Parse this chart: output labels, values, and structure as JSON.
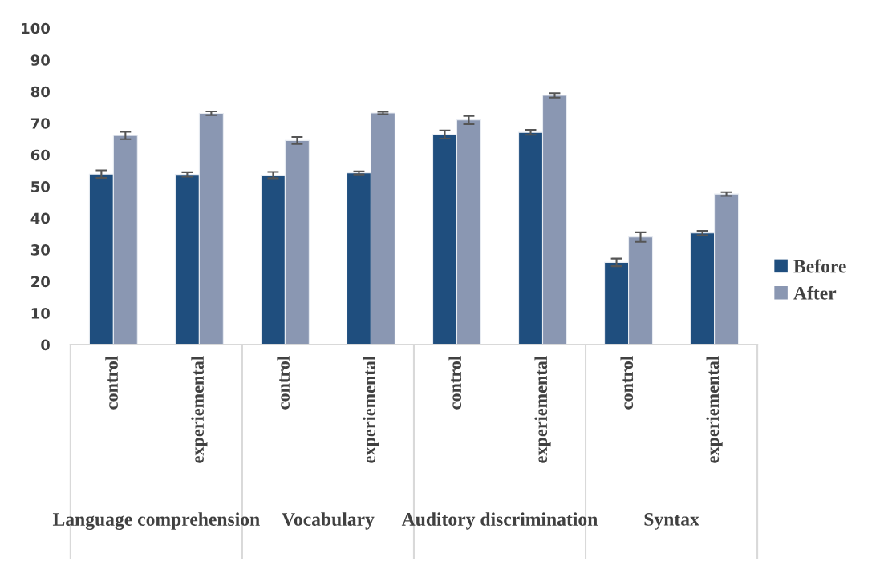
{
  "chart_data": {
    "type": "bar",
    "categories": [
      "control",
      "experiemental",
      "control",
      "experiemental",
      "control",
      "experiemental",
      "control",
      "experiemental"
    ],
    "series": [
      {
        "name": "Before",
        "color": "#1f4e7e",
        "values": [
          53.9,
          53.8,
          53.6,
          54.3,
          66.4,
          67.1,
          26.0,
          35.3
        ],
        "errors": [
          1.2,
          0.7,
          1.0,
          0.5,
          1.3,
          0.8,
          1.2,
          0.7
        ]
      },
      {
        "name": "After",
        "color": "#8a97b2",
        "values": [
          66.1,
          73.1,
          64.5,
          73.2,
          71.0,
          78.8,
          34.0,
          47.6
        ],
        "errors": [
          1.2,
          0.6,
          1.1,
          0.4,
          1.3,
          0.7,
          1.5,
          0.6
        ]
      }
    ],
    "annotations": [
      "Language comprehension",
      "Vocabulary",
      "Auditory discrimination",
      "Syntax"
    ],
    "ylim": [
      0,
      100
    ],
    "yticks": [
      0,
      10,
      20,
      30,
      40,
      50,
      60,
      70,
      80,
      90,
      100
    ],
    "grid": false,
    "legend": "right"
  }
}
